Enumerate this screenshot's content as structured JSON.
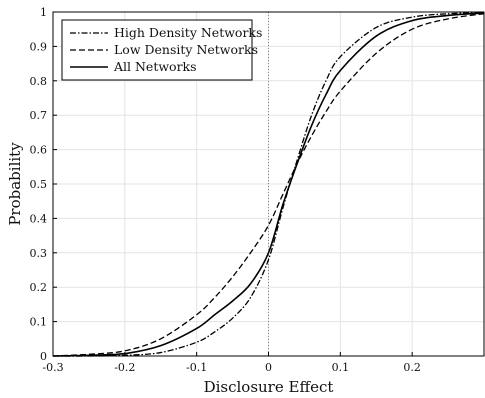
{
  "chart_data": {
    "type": "line",
    "xlabel": "Disclosure Effect",
    "ylabel": "Probability",
    "xlim": [
      -0.3,
      0.3
    ],
    "ylim": [
      0,
      1
    ],
    "xticks": [
      "-0.3",
      "-0.2",
      "-0.1",
      "0",
      "0.1",
      "0.2"
    ],
    "yticks": [
      "0",
      "0.1",
      "0.2",
      "0.3",
      "0.4",
      "0.5",
      "0.6",
      "0.7",
      "0.8",
      "0.9",
      "1"
    ],
    "grid": true,
    "reference_line_x": 0,
    "legend_position": "top-left",
    "series": [
      {
        "name": "High Density Networks",
        "style": "dash-dot",
        "x": [
          -0.3,
          -0.25,
          -0.2,
          -0.15,
          -0.1,
          -0.075,
          -0.05,
          -0.025,
          0,
          0.02,
          0.04,
          0.06,
          0.08,
          0.1,
          0.15,
          0.2,
          0.25,
          0.3
        ],
        "y": [
          0.0,
          0.0,
          0.002,
          0.01,
          0.04,
          0.07,
          0.11,
          0.17,
          0.28,
          0.43,
          0.57,
          0.7,
          0.8,
          0.87,
          0.955,
          0.985,
          0.995,
          0.998
        ]
      },
      {
        "name": "Low Density Networks",
        "style": "dashed",
        "x": [
          -0.3,
          -0.25,
          -0.2,
          -0.15,
          -0.1,
          -0.075,
          -0.05,
          -0.025,
          0,
          0.02,
          0.04,
          0.06,
          0.08,
          0.1,
          0.15,
          0.2,
          0.25,
          0.3
        ],
        "y": [
          0.0,
          0.005,
          0.015,
          0.05,
          0.12,
          0.17,
          0.23,
          0.3,
          0.38,
          0.47,
          0.56,
          0.64,
          0.71,
          0.77,
          0.88,
          0.95,
          0.98,
          0.995
        ]
      },
      {
        "name": "All Networks",
        "style": "solid",
        "x": [
          -0.3,
          -0.25,
          -0.2,
          -0.15,
          -0.1,
          -0.075,
          -0.05,
          -0.025,
          0,
          0.02,
          0.04,
          0.06,
          0.08,
          0.1,
          0.15,
          0.2,
          0.25,
          0.3
        ],
        "y": [
          0.0,
          0.002,
          0.007,
          0.03,
          0.08,
          0.12,
          0.16,
          0.21,
          0.3,
          0.44,
          0.56,
          0.67,
          0.76,
          0.83,
          0.93,
          0.975,
          0.99,
          0.997
        ]
      }
    ]
  }
}
